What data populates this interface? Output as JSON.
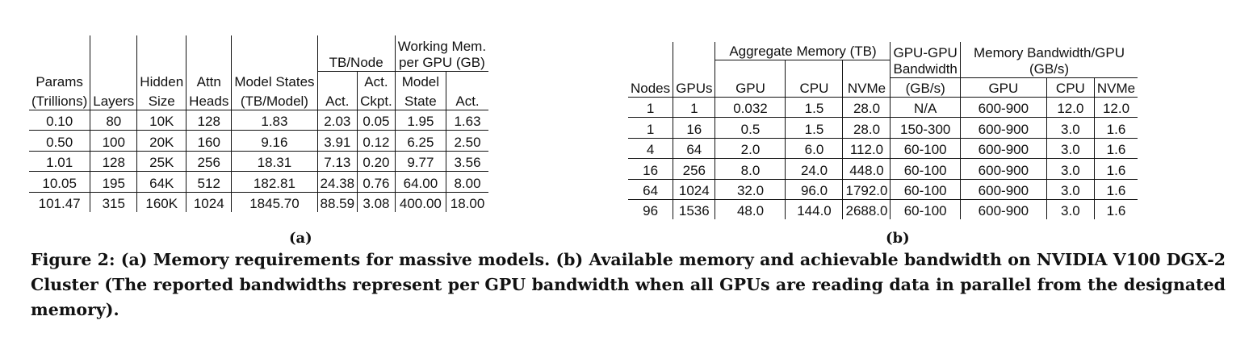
{
  "table_a": {
    "header_top": {
      "tb_node": "TB/Node",
      "working_mem": "Working Mem.\nper GPU (GB)"
    },
    "header_mid": {
      "params": "Params",
      "hidden": "Hidden",
      "attn": "Attn",
      "model_states": "Model States",
      "act_ckpt_top": "Act.",
      "model_state_top": "Model"
    },
    "header_bottom": {
      "params": "(Trillions)",
      "layers": "Layers",
      "hidden": "Size",
      "attn": "Heads",
      "model_states": "(TB/Model)",
      "act": "Act.",
      "act_ckpt": "Ckpt.",
      "model_state": "State",
      "act_mem": "Act."
    },
    "rows": [
      [
        "0.10",
        "80",
        "10K",
        "128",
        "1.83",
        "2.03",
        "0.05",
        "1.95",
        "1.63"
      ],
      [
        "0.50",
        "100",
        "20K",
        "160",
        "9.16",
        "3.91",
        "0.12",
        "6.25",
        "2.50"
      ],
      [
        "1.01",
        "128",
        "25K",
        "256",
        "18.31",
        "7.13",
        "0.20",
        "9.77",
        "3.56"
      ],
      [
        "10.05",
        "195",
        "64K",
        "512",
        "182.81",
        "24.38",
        "0.76",
        "64.00",
        "8.00"
      ],
      [
        "101.47",
        "315",
        "160K",
        "1024",
        "1845.70",
        "88.59",
        "3.08",
        "400.00",
        "18.00"
      ]
    ]
  },
  "table_b": {
    "header_top": {
      "aggregate": "Aggregate Memory (TB)",
      "gpu_gpu": "GPU-GPU\nBandwidth",
      "mem_bw": "Memory Bandwidth/GPU\n(GB/s)"
    },
    "header_bottom": {
      "nodes": "Nodes",
      "gpus": "GPUs",
      "gpu": "GPU",
      "cpu": "CPU",
      "nvme": "NVMe",
      "gpu_gpu_unit": "(GB/s)",
      "bw_gpu": "GPU",
      "bw_cpu": "CPU",
      "bw_nvme": "NVMe"
    },
    "rows": [
      [
        "1",
        "1",
        "0.032",
        "1.5",
        "28.0",
        "N/A",
        "600-900",
        "12.0",
        "12.0"
      ],
      [
        "1",
        "16",
        "0.5",
        "1.5",
        "28.0",
        "150-300",
        "600-900",
        "3.0",
        "1.6"
      ],
      [
        "4",
        "64",
        "2.0",
        "6.0",
        "112.0",
        "60-100",
        "600-900",
        "3.0",
        "1.6"
      ],
      [
        "16",
        "256",
        "8.0",
        "24.0",
        "448.0",
        "60-100",
        "600-900",
        "3.0",
        "1.6"
      ],
      [
        "64",
        "1024",
        "32.0",
        "96.0",
        "1792.0",
        "60-100",
        "600-900",
        "3.0",
        "1.6"
      ],
      [
        "96",
        "1536",
        "48.0",
        "144.0",
        "2688.0",
        "60-100",
        "600-900",
        "3.0",
        "1.6"
      ]
    ]
  },
  "subcaptions": {
    "a": "(a)",
    "b": "(b)"
  },
  "caption": "Figure 2: (a) Memory requirements for massive models. (b) Available memory and achievable bandwidth on NVIDIA V100 DGX-2 Cluster (The reported bandwidths represent per GPU bandwidth when all GPUs are reading data in parallel from the designated memory)."
}
